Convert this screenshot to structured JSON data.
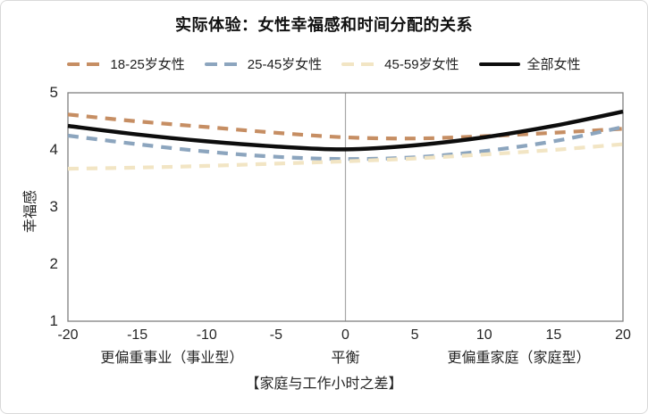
{
  "chart_data": {
    "type": "line",
    "title": "实际体验：女性幸福感和时间分配的关系",
    "ylabel": "幸福感",
    "xlabel": "【家庭与工作小时之差】",
    "xlim": [
      -20,
      20
    ],
    "ylim": [
      1,
      5
    ],
    "xticks": [
      -20,
      -15,
      -10,
      -5,
      0,
      5,
      10,
      15,
      20
    ],
    "yticks": [
      5,
      4,
      3,
      2,
      1
    ],
    "grid": "off",
    "legend_position": "top",
    "frame_color": "#808080",
    "centerline_color": "#a6a6a6",
    "x": [
      -20,
      -15,
      -10,
      -5,
      0,
      5,
      10,
      15,
      20
    ],
    "series": [
      {
        "name": "18-25岁女性",
        "color": "#C68E63",
        "style": "dashed",
        "values": [
          4.62,
          4.5,
          4.4,
          4.3,
          4.22,
          4.2,
          4.24,
          4.3,
          4.37
        ]
      },
      {
        "name": "25-45岁女性",
        "color": "#8CA5BE",
        "style": "dashed",
        "values": [
          4.25,
          4.1,
          3.97,
          3.88,
          3.84,
          3.87,
          3.98,
          4.15,
          4.4
        ]
      },
      {
        "name": "45-59岁女性",
        "color": "#F2E5C4",
        "style": "dashed",
        "values": [
          3.67,
          3.69,
          3.72,
          3.76,
          3.8,
          3.85,
          3.92,
          4.0,
          4.1
        ]
      },
      {
        "name": "全部女性",
        "color": "#0D0D0D",
        "style": "solid",
        "values": [
          4.42,
          4.27,
          4.15,
          4.06,
          4.01,
          4.08,
          4.22,
          4.42,
          4.67
        ]
      }
    ],
    "x_zone_labels": [
      {
        "text": "更偏重事业（事业型）",
        "x": -12.5
      },
      {
        "text": "平衡",
        "x": 0
      },
      {
        "text": "更偏重家庭（家庭型）",
        "x": 12.5
      }
    ],
    "balance_line_x": 0
  }
}
